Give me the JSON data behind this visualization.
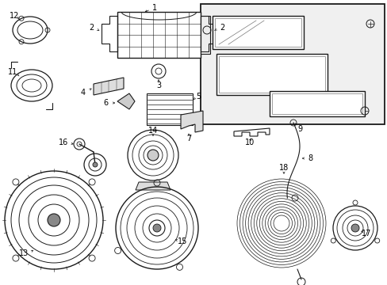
{
  "bg": "#ffffff",
  "lc": "#1a1a1a",
  "tc": "#000000",
  "fw": 4.89,
  "fh": 3.6,
  "dpi": 100
}
